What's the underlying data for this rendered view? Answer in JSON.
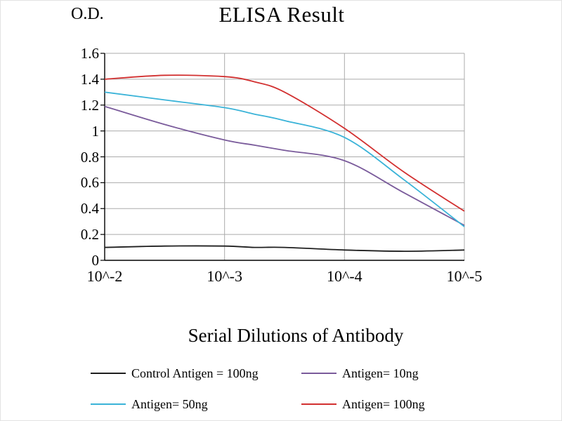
{
  "chart_data": {
    "type": "line",
    "title": "ELISA Result",
    "ylabel": "O.D.",
    "xlabel": "Serial Dilutions of Antibody",
    "x_ticks": [
      "10^-2",
      "10^-3",
      "10^-4",
      "10^-5"
    ],
    "x_tick_exponents": [
      2,
      3,
      4,
      5
    ],
    "y_tick_labels": [
      "0",
      "0.2",
      "0.4",
      "0.6",
      "0.8",
      "1",
      "1.2",
      "1.4",
      "1.6"
    ],
    "y_ticks": [
      0,
      0.2,
      0.4,
      0.6,
      0.8,
      1,
      1.2,
      1.4,
      1.6
    ],
    "xlim": [
      2,
      5
    ],
    "ylim": [
      0,
      1.6
    ],
    "grid": true,
    "legend_position": "bottom",
    "axis_color": "#000000",
    "grid_color": "#ababab",
    "x": [
      2,
      2.5,
      3,
      3.25,
      3.5,
      4,
      4.5,
      5
    ],
    "series": [
      {
        "name": "Control Antigen = 100ng",
        "color": "#1f1f1f",
        "values": [
          0.1,
          0.11,
          0.11,
          0.1,
          0.1,
          0.08,
          0.07,
          0.08
        ]
      },
      {
        "name": "Antigen= 10ng",
        "color": "#7a5b9b",
        "values": [
          1.19,
          1.05,
          0.93,
          0.89,
          0.85,
          0.77,
          0.52,
          0.27
        ]
      },
      {
        "name": "Antigen= 50ng",
        "color": "#3ab3d8",
        "values": [
          1.3,
          1.24,
          1.18,
          1.13,
          1.08,
          0.95,
          0.62,
          0.26
        ]
      },
      {
        "name": "Antigen= 100ng",
        "color": "#d23030",
        "values": [
          1.4,
          1.43,
          1.42,
          1.38,
          1.3,
          1.02,
          0.68,
          0.38
        ]
      }
    ]
  }
}
